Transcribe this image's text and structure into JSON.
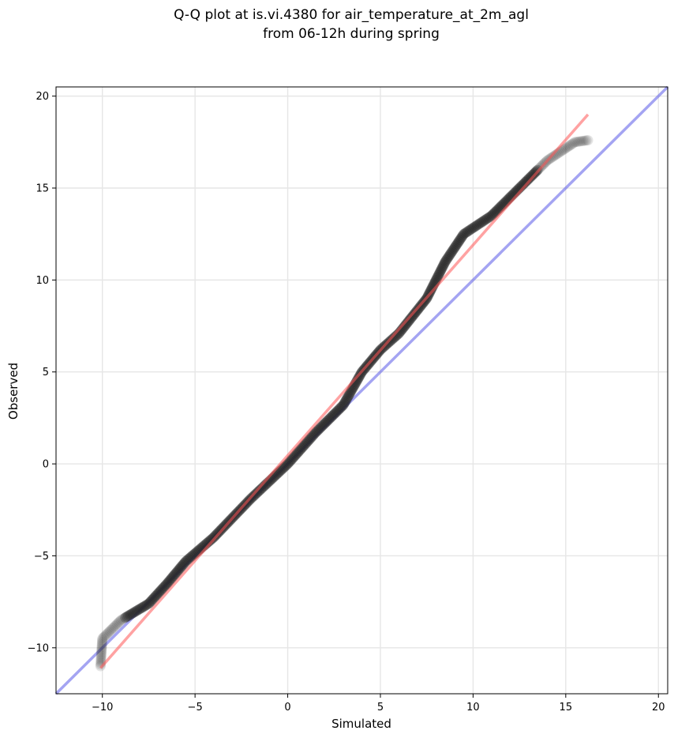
{
  "chart_data": {
    "type": "scatter",
    "title": "Q-Q plot at is.vi.4380 for air_temperature_at_2m_agl\nfrom 06-12h during spring",
    "title_lines": [
      "Q-Q plot at is.vi.4380 for air_temperature_at_2m_agl",
      "from 06-12h during spring"
    ],
    "xlabel": "Simulated",
    "ylabel": "Observed",
    "xlim": [
      -12.5,
      20.5
    ],
    "ylim": [
      -12.5,
      20.5
    ],
    "xticks": [
      -10,
      -5,
      0,
      5,
      10,
      15,
      20
    ],
    "yticks": [
      -10,
      -5,
      0,
      5,
      10,
      15,
      20
    ],
    "xtick_labels": [
      "−10",
      "−5",
      "0",
      "5",
      "10",
      "15",
      "20"
    ],
    "ytick_labels": [
      "−10",
      "−5",
      "0",
      "5",
      "10",
      "15",
      "20"
    ],
    "grid": true,
    "colors": {
      "points": "#222222",
      "fit_line": "#ff5555",
      "identity_line": "#5a5ae8",
      "grid": "#e6e6e6"
    },
    "quantile_anchors": [
      {
        "x": -10.1,
        "y": -11.0
      },
      {
        "x": -10.0,
        "y": -9.5
      },
      {
        "x": -9.0,
        "y": -8.5
      },
      {
        "x": -7.5,
        "y": -7.6
      },
      {
        "x": -6.5,
        "y": -6.5
      },
      {
        "x": -5.5,
        "y": -5.3
      },
      {
        "x": -4.0,
        "y": -4.0
      },
      {
        "x": -2.0,
        "y": -1.9
      },
      {
        "x": 0.0,
        "y": 0.0
      },
      {
        "x": 1.5,
        "y": 1.7
      },
      {
        "x": 3.0,
        "y": 3.2
      },
      {
        "x": 4.0,
        "y": 5.0
      },
      {
        "x": 5.0,
        "y": 6.2
      },
      {
        "x": 6.0,
        "y": 7.1
      },
      {
        "x": 7.5,
        "y": 9.0
      },
      {
        "x": 8.5,
        "y": 11.0
      },
      {
        "x": 9.5,
        "y": 12.5
      },
      {
        "x": 11.0,
        "y": 13.5
      },
      {
        "x": 12.5,
        "y": 15.0
      },
      {
        "x": 14.0,
        "y": 16.5
      },
      {
        "x": 15.5,
        "y": 17.5
      },
      {
        "x": 16.2,
        "y": 17.6
      }
    ],
    "fit_line": {
      "x": [
        -10.1,
        16.2
      ],
      "y": [
        -11.1,
        19.0
      ]
    },
    "identity_line": {
      "x": [
        -12.5,
        20.5
      ],
      "y": [
        -12.5,
        20.5
      ]
    }
  }
}
